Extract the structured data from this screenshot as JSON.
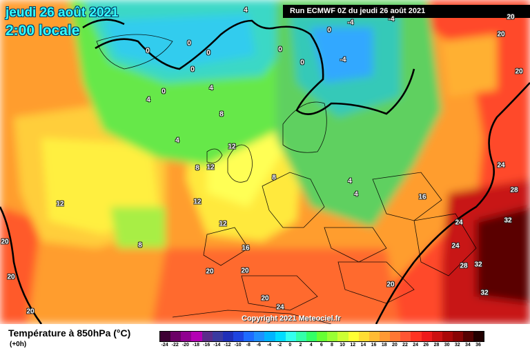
{
  "title": {
    "date": "jeudi 26 août 2021",
    "time": "2:00 locale"
  },
  "run": "Run ECMWF 0Z du jeudi 26 août 2021",
  "copyright": "Copyright 2021 Meteociel.fr",
  "legend": {
    "title": "Température à 850hPa (°C)",
    "subtitle": "(+0h)",
    "ticks": [
      "-24",
      "-22",
      "-20",
      "-18",
      "-16",
      "-14",
      "-12",
      "-10",
      "-8",
      "-6",
      "-4",
      "-2",
      "0",
      "2",
      "4",
      "6",
      "8",
      "10",
      "12",
      "14",
      "16",
      "18",
      "20",
      "22",
      "24",
      "26",
      "28",
      "30",
      "32",
      "34",
      "36"
    ],
    "colors": [
      "#3d0033",
      "#6b0066",
      "#900090",
      "#b400b4",
      "#5a2c8a",
      "#3a3aa0",
      "#1f2fb8",
      "#1e44e0",
      "#1e6cff",
      "#1e90ff",
      "#00b4ff",
      "#00dcff",
      "#33ffee",
      "#33ffaa",
      "#33ff66",
      "#66ff33",
      "#99ff33",
      "#ccff33",
      "#ffff33",
      "#ffdd33",
      "#ffbb33",
      "#ff9933",
      "#ff7733",
      "#ff5533",
      "#ff3322",
      "#ee1a1a",
      "#cc1111",
      "#aa0808",
      "#880505",
      "#550202",
      "#220000"
    ]
  },
  "map_labels": {
    "isotherms": [
      {
        "text": "0"
      },
      {
        "text": "0"
      },
      {
        "text": "0"
      },
      {
        "text": "0"
      },
      {
        "text": "0"
      },
      {
        "text": "0"
      },
      {
        "text": "0"
      },
      {
        "text": "0"
      },
      {
        "text": "4"
      },
      {
        "text": "4"
      },
      {
        "text": "-4"
      },
      {
        "text": "-4"
      },
      {
        "text": "-4"
      },
      {
        "text": "4"
      },
      {
        "text": "4"
      },
      {
        "text": "8"
      },
      {
        "text": "8"
      },
      {
        "text": "12"
      },
      {
        "text": "12"
      },
      {
        "text": "8"
      },
      {
        "text": "12"
      },
      {
        "text": "12"
      },
      {
        "text": "12"
      },
      {
        "text": "8"
      },
      {
        "text": "4"
      },
      {
        "text": "4"
      },
      {
        "text": "16"
      },
      {
        "text": "16"
      },
      {
        "text": "20"
      },
      {
        "text": "20"
      },
      {
        "text": "20"
      },
      {
        "text": "20"
      },
      {
        "text": "20"
      },
      {
        "text": "20"
      },
      {
        "text": "20"
      },
      {
        "text": "24"
      },
      {
        "text": "24"
      },
      {
        "text": "24"
      },
      {
        "text": "24"
      },
      {
        "text": "24"
      },
      {
        "text": "28"
      },
      {
        "text": "28"
      },
      {
        "text": "32"
      },
      {
        "text": "32"
      },
      {
        "text": "32"
      },
      {
        "text": "20"
      },
      {
        "text": "20"
      },
      {
        "text": "20"
      },
      {
        "text": "20"
      }
    ]
  }
}
